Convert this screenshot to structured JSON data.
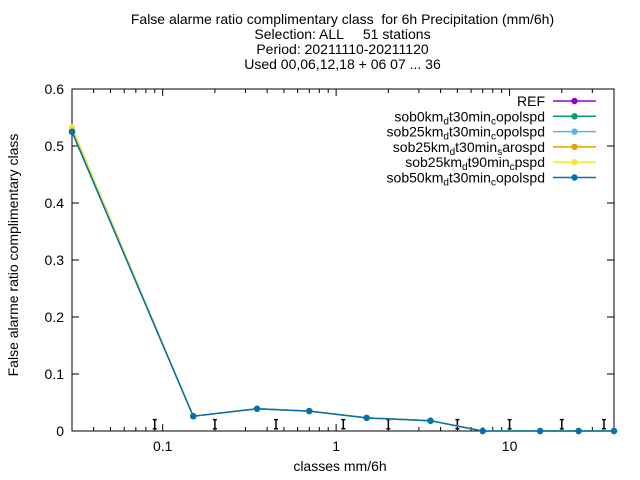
{
  "title_lines": [
    "False alarme ratio complimentary class  for 6h Precipitation (mm/6h)",
    "Selection: ALL     51 stations",
    "Period: 20211110-20211120",
    "Used 00,06,12,18 + 06 07 ... 36"
  ],
  "chart_data": {
    "type": "line",
    "xlabel": "classes mm/6h",
    "ylabel": "False alarme ratio complimentary class",
    "xscale": "log",
    "xlim": [
      0.03,
      40
    ],
    "ylim": [
      0,
      0.6
    ],
    "x_ticks": [
      0.1,
      1,
      10
    ],
    "x_tick_labels": [
      "0.1",
      "1",
      "10"
    ],
    "y_ticks": [
      0,
      0.1,
      0.2,
      0.3,
      0.4,
      0.5,
      0.6
    ],
    "y_tick_labels": [
      "0",
      "0.1",
      "0.2",
      "0.3",
      "0.4",
      "0.5",
      "0.6"
    ],
    "grid": false,
    "legend_position": "top-right",
    "x": [
      0.03,
      0.15,
      0.35,
      0.7,
      1.5,
      3.5,
      7,
      15,
      25,
      40
    ],
    "series": [
      {
        "label_parts": [
          [
            "sob0km",
            ""
          ],
          [
            "d",
            "sub"
          ],
          [
            "t30min",
            ""
          ],
          [
            "c",
            "sub"
          ],
          [
            "opolspd",
            ""
          ]
        ],
        "color": "#009e73",
        "values": [
          0.525,
          0.026,
          0.039,
          0.035,
          0.023,
          0.018,
          0,
          0,
          0,
          0
        ]
      },
      {
        "label_parts": [
          [
            "sob25km",
            ""
          ],
          [
            "d",
            "sub"
          ],
          [
            "t30min",
            ""
          ],
          [
            "c",
            "sub"
          ],
          [
            "opolspd",
            ""
          ]
        ],
        "color": "#56b4e9",
        "values": [
          0.525,
          0.026,
          0.039,
          0.035,
          0.023,
          0.018,
          0,
          0,
          0,
          0
        ]
      },
      {
        "label_parts": [
          [
            "sob25km",
            ""
          ],
          [
            "d",
            "sub"
          ],
          [
            "t30min",
            ""
          ],
          [
            "s",
            "sub"
          ],
          [
            "arospd",
            ""
          ]
        ],
        "color": "#e69f00",
        "values": [
          0.528,
          0.026,
          0.039,
          0.035,
          0.023,
          0.018,
          0,
          0,
          0,
          0
        ]
      },
      {
        "label_parts": [
          [
            "sob25km",
            ""
          ],
          [
            "d",
            "sub"
          ],
          [
            "t90min",
            ""
          ],
          [
            "c",
            "sub"
          ],
          [
            "pspd",
            ""
          ]
        ],
        "color": "#f0e442",
        "values": [
          0.533,
          0.026,
          0.039,
          0.035,
          0.023,
          0.018,
          0,
          0,
          0,
          0
        ]
      },
      {
        "label_parts": [
          [
            "sob50km",
            ""
          ],
          [
            "d",
            "sub"
          ],
          [
            "t30min",
            ""
          ],
          [
            "c",
            "sub"
          ],
          [
            "opolspd",
            ""
          ]
        ],
        "color": "#0072b2",
        "values": [
          0.525,
          0.026,
          0.039,
          0.035,
          0.023,
          0.018,
          0,
          0,
          0,
          0
        ]
      }
    ],
    "ref_series": {
      "label": "REF",
      "color": "#9400d3"
    },
    "error_bar_x": [
      0.09,
      0.2,
      0.45,
      1.1,
      2,
      5,
      10,
      20,
      35
    ],
    "error_bar_y": 0.012,
    "error_bar_halfwidth": 0.008
  }
}
